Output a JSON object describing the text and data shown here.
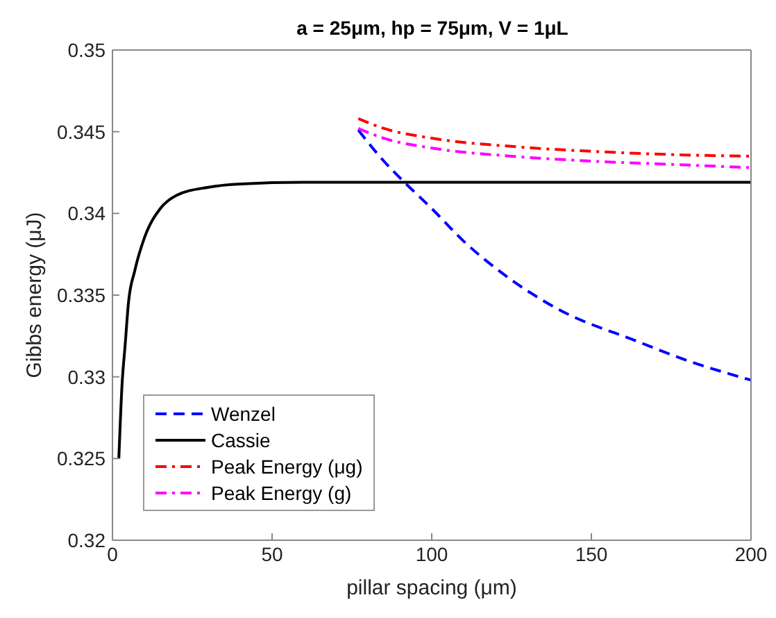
{
  "chart_data": {
    "type": "line",
    "title": "a = 25μm, hp = 75μm, V = 1μL",
    "xlabel": "pillar spacing (μm)",
    "ylabel": "Gibbs energy (μJ)",
    "xlim": [
      0,
      200
    ],
    "xticks": [
      0,
      50,
      100,
      150,
      200
    ],
    "ylim": [
      0.32,
      0.35
    ],
    "yticks": [
      0.32,
      0.325,
      0.33,
      0.335,
      0.34,
      0.345,
      0.35
    ],
    "grid": false,
    "legend": "bottom left",
    "marker": "none",
    "series": [
      {
        "name": "Wenzel",
        "color": "#0000ff",
        "line_style": "dashed",
        "x": [
          77,
          85,
          92,
          100,
          110,
          121,
          140,
          164,
          180,
          200
        ],
        "values": [
          0.3451,
          0.3432,
          0.3418,
          0.3403,
          0.3383,
          0.3365,
          0.3341,
          0.3322,
          0.331,
          0.3298
        ]
      },
      {
        "name": "Cassie",
        "color": "#000000",
        "line_style": "solid",
        "x": [
          2,
          3,
          4,
          5,
          7,
          10,
          15,
          20,
          30,
          40,
          60,
          100,
          200
        ],
        "values": [
          0.325,
          0.3295,
          0.332,
          0.3345,
          0.3365,
          0.3385,
          0.3403,
          0.3411,
          0.3416,
          0.3418,
          0.3419,
          0.3419,
          0.3419
        ]
      },
      {
        "name": "Peak Energy (μg)",
        "color": "#ff0000",
        "line_style": "dashdot",
        "x": [
          77,
          85,
          100,
          125,
          150,
          175,
          200
        ],
        "values": [
          0.3458,
          0.3452,
          0.3446,
          0.3441,
          0.3438,
          0.3436,
          0.3435
        ]
      },
      {
        "name": "Peak Energy (g)",
        "color": "#ff00ff",
        "line_style": "dashdot",
        "x": [
          77,
          85,
          100,
          125,
          150,
          175,
          200
        ],
        "values": [
          0.3452,
          0.3446,
          0.344,
          0.3435,
          0.3432,
          0.343,
          0.3428
        ]
      }
    ]
  }
}
